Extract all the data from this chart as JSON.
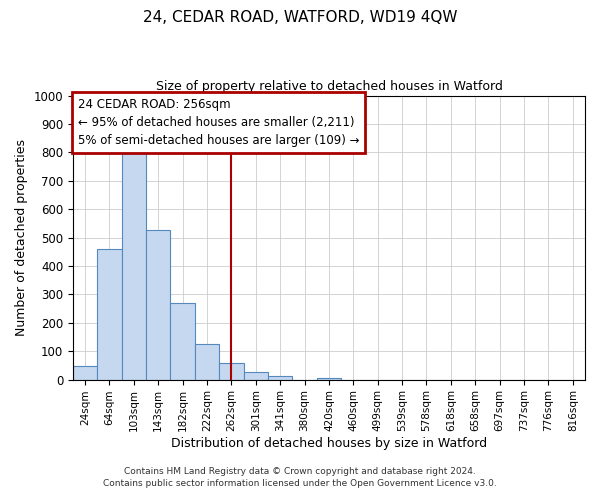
{
  "title": "24, CEDAR ROAD, WATFORD, WD19 4QW",
  "subtitle": "Size of property relative to detached houses in Watford",
  "xlabel": "Distribution of detached houses by size in Watford",
  "ylabel": "Number of detached properties",
  "bar_labels": [
    "24sqm",
    "64sqm",
    "103sqm",
    "143sqm",
    "182sqm",
    "222sqm",
    "262sqm",
    "301sqm",
    "341sqm",
    "380sqm",
    "420sqm",
    "460sqm",
    "499sqm",
    "539sqm",
    "578sqm",
    "618sqm",
    "658sqm",
    "697sqm",
    "737sqm",
    "776sqm",
    "816sqm"
  ],
  "bar_heights": [
    47,
    460,
    810,
    525,
    270,
    125,
    57,
    25,
    12,
    0,
    5,
    0,
    0,
    0,
    0,
    0,
    0,
    0,
    0,
    0,
    0
  ],
  "bar_color": "#c5d8f0",
  "bar_edge_color": "#5588bb",
  "vline_x_index": 6,
  "vline_color": "#aa0000",
  "annotation_text": "24 CEDAR ROAD: 256sqm\n← 95% of detached houses are smaller (2,211)\n5% of semi-detached houses are larger (109) →",
  "ylim": [
    0,
    1000
  ],
  "yticks": [
    0,
    100,
    200,
    300,
    400,
    500,
    600,
    700,
    800,
    900,
    1000
  ],
  "footer1": "Contains HM Land Registry data © Crown copyright and database right 2024.",
  "footer2": "Contains public sector information licensed under the Open Government Licence v3.0.",
  "bg_color": "#ffffff",
  "grid_color": "#cccccc",
  "title_fontsize": 11,
  "subtitle_fontsize": 9
}
